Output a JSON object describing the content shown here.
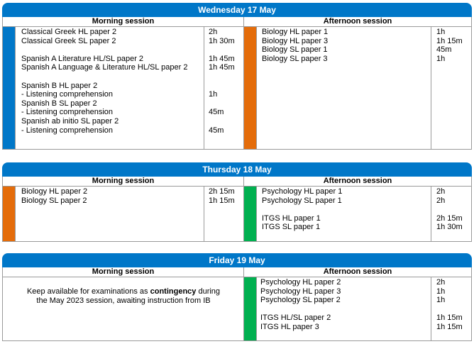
{
  "colors": {
    "header_blue": "#0077c8",
    "band_blue": "#0077c8",
    "band_orange": "#e46c0a",
    "band_green": "#00b050"
  },
  "days": [
    {
      "title": "Wednesday 17 May",
      "morning_label": "Morning session",
      "afternoon_label": "Afternoon session",
      "morning_rows": [
        {
          "name": "Classical Greek HL paper 2",
          "dur": "2h"
        },
        {
          "name": "Classical Greek SL paper 2",
          "dur": "1h 30m"
        },
        {
          "name": "",
          "dur": ""
        },
        {
          "name": "Spanish A Literature HL/SL paper 2",
          "dur": "1h 45m"
        },
        {
          "name": "Spanish A Language & Literature HL/SL paper 2",
          "dur": "1h 45m"
        },
        {
          "name": "",
          "dur": ""
        },
        {
          "name": "Spanish B HL paper 2",
          "dur": ""
        },
        {
          "name": "- Listening comprehension",
          "dur": "1h"
        },
        {
          "name": "Spanish B SL paper 2",
          "dur": ""
        },
        {
          "name": "- Listening comprehension",
          "dur": "45m"
        },
        {
          "name": "Spanish ab initio SL paper 2",
          "dur": ""
        },
        {
          "name": "- Listening comprehension",
          "dur": "45m"
        }
      ],
      "afternoon_rows": [
        {
          "name": "Biology HL paper 1",
          "dur": "1h"
        },
        {
          "name": "Biology HL paper 3",
          "dur": "1h 15m"
        },
        {
          "name": "Biology SL paper 1",
          "dur": "45m"
        },
        {
          "name": "Biology SL paper 3",
          "dur": "1h"
        }
      ]
    },
    {
      "title": "Thursday 18 May",
      "morning_label": "Morning session",
      "afternoon_label": "Afternoon session",
      "morning_rows": [
        {
          "name": "Biology HL paper 2",
          "dur": "2h 15m"
        },
        {
          "name": "Biology SL paper 2",
          "dur": "1h 15m"
        }
      ],
      "afternoon_rows": [
        {
          "name": "Psychology HL paper 1",
          "dur": "2h"
        },
        {
          "name": "Psychology SL paper 1",
          "dur": "2h"
        },
        {
          "name": "",
          "dur": ""
        },
        {
          "name": "ITGS HL paper 1",
          "dur": "2h 15m"
        },
        {
          "name": "ITGS SL paper 1",
          "dur": "1h 30m"
        }
      ]
    },
    {
      "title": "Friday 19 May",
      "morning_label": "Morning session",
      "afternoon_label": "Afternoon session",
      "contingency": {
        "line1_pre": "Keep available for examinations as ",
        "line1_bold": "contingency",
        "line1_post": " during",
        "line2": "the May 2023 session, awaiting instruction from IB"
      },
      "afternoon_rows": [
        {
          "name": "Psychology HL paper 2",
          "dur": "2h"
        },
        {
          "name": "Psychology HL paper 3",
          "dur": "1h"
        },
        {
          "name": "Psychology SL paper 2",
          "dur": "1h"
        },
        {
          "name": "",
          "dur": ""
        },
        {
          "name": "ITGS HL/SL paper 2",
          "dur": "1h 15m"
        },
        {
          "name": "ITGS HL paper 3",
          "dur": "1h 15m"
        }
      ]
    }
  ]
}
